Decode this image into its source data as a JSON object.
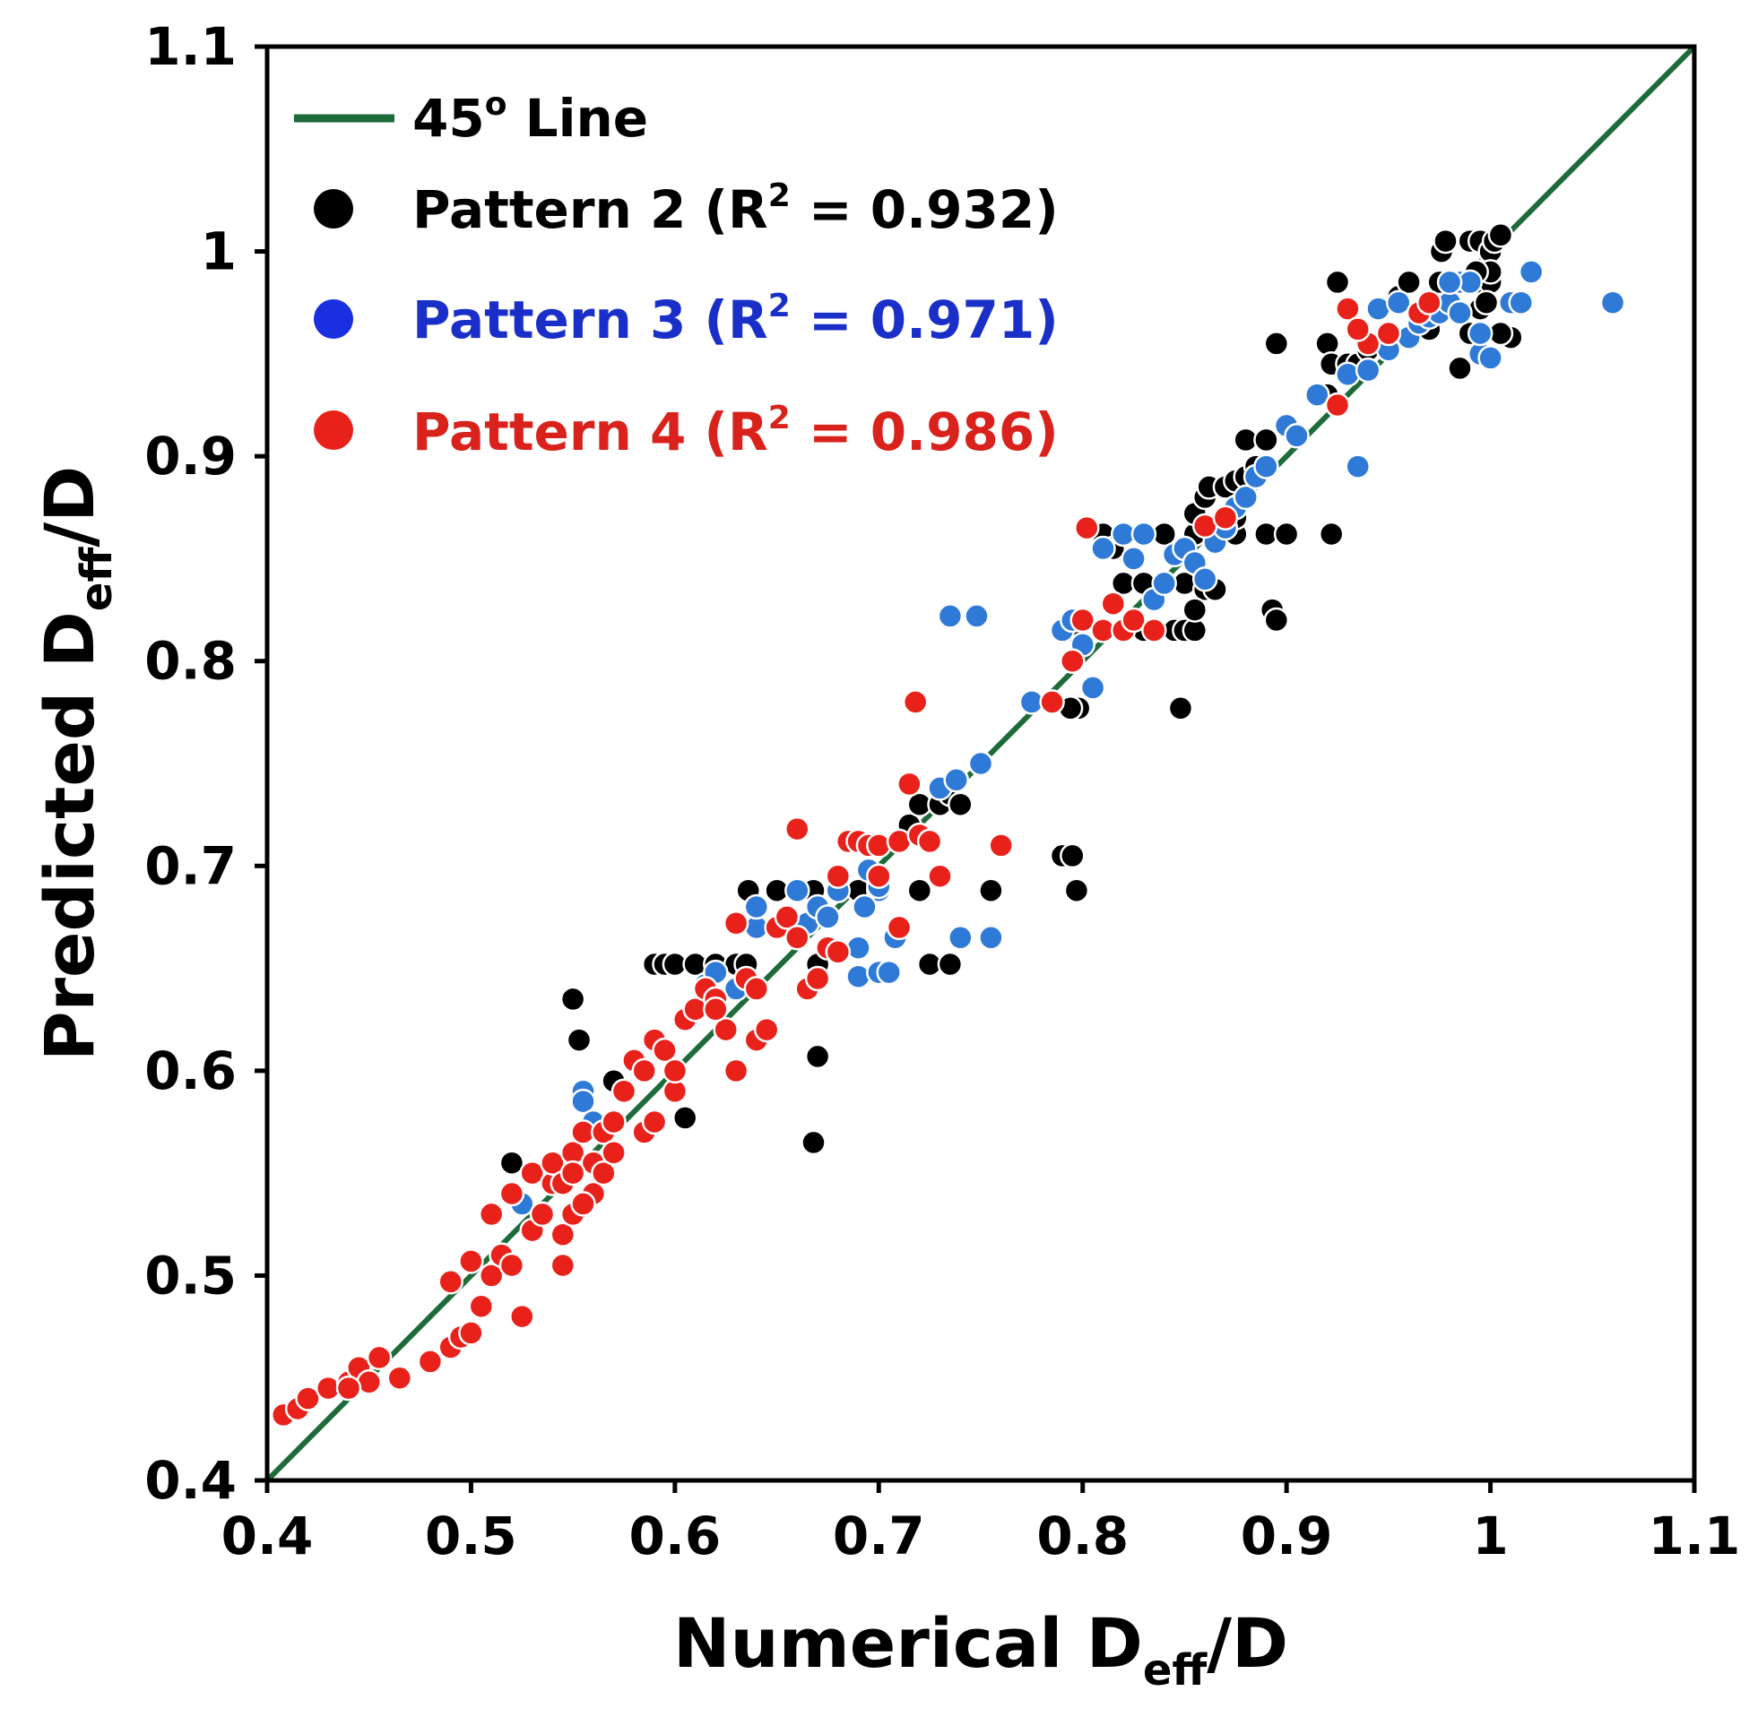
{
  "chart_data": {
    "type": "scatter",
    "xlabel": {
      "main": "Numerical D",
      "sub": "eff",
      "suffix": "/D"
    },
    "ylabel": {
      "main": "Predicted D",
      "sub": "eff",
      "suffix": "/D"
    },
    "xlim": [
      0.4,
      1.1
    ],
    "ylim": [
      0.4,
      1.1
    ],
    "x_ticks": [
      0.4,
      0.5,
      0.6,
      0.7,
      0.8,
      0.9,
      1.0,
      1.1
    ],
    "x_tick_labels": [
      "0.4",
      "0.5",
      "0.6",
      "0.7",
      "0.8",
      "0.9",
      "1",
      "1.1"
    ],
    "y_ticks": [
      0.4,
      0.5,
      0.6,
      0.7,
      0.8,
      0.9,
      1.0,
      1.1
    ],
    "y_tick_labels": [
      "0.4",
      "0.5",
      "0.6",
      "0.7",
      "0.8",
      "0.9",
      "1",
      "1.1"
    ],
    "grid": false,
    "legend_position": "top-left",
    "reference_line": {
      "name": "45° Line",
      "legend_main": "45",
      "legend_sup": "o",
      "legend_suffix": " Line",
      "color": "#1e6b3a",
      "x": [
        0.4,
        1.1
      ],
      "y": [
        0.4,
        1.1
      ]
    },
    "series": [
      {
        "name": "Pattern 2 (R² = 0.932)",
        "legend_prefix": "Pattern 2 (R",
        "legend_sup": "2",
        "legend_suffix": " = 0.932)",
        "color": "#000000",
        "points": [
          [
            0.52,
            0.555
          ],
          [
            0.55,
            0.635
          ],
          [
            0.553,
            0.615
          ],
          [
            0.57,
            0.595
          ],
          [
            0.605,
            0.577
          ],
          [
            0.668,
            0.565
          ],
          [
            0.67,
            0.607
          ],
          [
            0.59,
            0.652
          ],
          [
            0.595,
            0.652
          ],
          [
            0.6,
            0.652
          ],
          [
            0.61,
            0.652
          ],
          [
            0.62,
            0.652
          ],
          [
            0.63,
            0.652
          ],
          [
            0.635,
            0.652
          ],
          [
            0.636,
            0.688
          ],
          [
            0.65,
            0.688
          ],
          [
            0.668,
            0.688
          ],
          [
            0.69,
            0.688
          ],
          [
            0.72,
            0.688
          ],
          [
            0.67,
            0.652
          ],
          [
            0.725,
            0.652
          ],
          [
            0.735,
            0.652
          ],
          [
            0.755,
            0.688
          ],
          [
            0.79,
            0.705
          ],
          [
            0.795,
            0.705
          ],
          [
            0.797,
            0.688
          ],
          [
            0.715,
            0.72
          ],
          [
            0.72,
            0.73
          ],
          [
            0.73,
            0.73
          ],
          [
            0.735,
            0.735
          ],
          [
            0.74,
            0.73
          ],
          [
            0.79,
            0.815
          ],
          [
            0.795,
            0.815
          ],
          [
            0.798,
            0.777
          ],
          [
            0.794,
            0.777
          ],
          [
            0.848,
            0.777
          ],
          [
            0.81,
            0.862
          ],
          [
            0.815,
            0.855
          ],
          [
            0.82,
            0.838
          ],
          [
            0.83,
            0.838
          ],
          [
            0.84,
            0.838
          ],
          [
            0.85,
            0.838
          ],
          [
            0.86,
            0.835
          ],
          [
            0.865,
            0.835
          ],
          [
            0.83,
            0.815
          ],
          [
            0.845,
            0.815
          ],
          [
            0.85,
            0.815
          ],
          [
            0.855,
            0.815
          ],
          [
            0.855,
            0.825
          ],
          [
            0.84,
            0.862
          ],
          [
            0.855,
            0.862
          ],
          [
            0.865,
            0.862
          ],
          [
            0.87,
            0.862
          ],
          [
            0.875,
            0.862
          ],
          [
            0.855,
            0.872
          ],
          [
            0.86,
            0.88
          ],
          [
            0.862,
            0.885
          ],
          [
            0.87,
            0.885
          ],
          [
            0.875,
            0.87
          ],
          [
            0.875,
            0.888
          ],
          [
            0.88,
            0.89
          ],
          [
            0.88,
            0.908
          ],
          [
            0.885,
            0.895
          ],
          [
            0.89,
            0.908
          ],
          [
            0.893,
            0.825
          ],
          [
            0.895,
            0.82
          ],
          [
            0.89,
            0.862
          ],
          [
            0.9,
            0.862
          ],
          [
            0.922,
            0.862
          ],
          [
            0.895,
            0.955
          ],
          [
            0.92,
            0.93
          ],
          [
            0.92,
            0.955
          ],
          [
            0.922,
            0.945
          ],
          [
            0.925,
            0.985
          ],
          [
            0.93,
            0.945
          ],
          [
            0.935,
            0.945
          ],
          [
            0.94,
            0.952
          ],
          [
            0.955,
            0.978
          ],
          [
            0.96,
            0.985
          ],
          [
            0.965,
            0.962
          ],
          [
            0.97,
            0.962
          ],
          [
            0.975,
            0.985
          ],
          [
            0.975,
            0.972
          ],
          [
            0.976,
            1.0
          ],
          [
            0.978,
            1.005
          ],
          [
            0.98,
            0.985
          ],
          [
            0.985,
            0.943
          ],
          [
            0.99,
            0.96
          ],
          [
            0.99,
            1.005
          ],
          [
            0.995,
            1.005
          ],
          [
            0.995,
            0.985
          ],
          [
            0.995,
            0.972
          ],
          [
            1.0,
            1.0
          ],
          [
            1.0,
            0.985
          ],
          [
            1.002,
            1.005
          ],
          [
            1.005,
            1.008
          ],
          [
            1.0,
            0.99
          ],
          [
            0.998,
            0.975
          ],
          [
            1.01,
            0.958
          ],
          [
            1.005,
            0.96
          ],
          [
            0.985,
            0.985
          ],
          [
            0.993,
            0.99
          ]
        ]
      },
      {
        "name": "Pattern 3 (R² = 0.971)",
        "legend_prefix": "Pattern 3 (R",
        "legend_sup": "2",
        "legend_suffix": " = 0.971)",
        "color": "#2f7ad6",
        "points": [
          [
            0.525,
            0.535
          ],
          [
            0.555,
            0.59
          ],
          [
            0.555,
            0.585
          ],
          [
            0.56,
            0.575
          ],
          [
            0.615,
            0.642
          ],
          [
            0.62,
            0.648
          ],
          [
            0.63,
            0.64
          ],
          [
            0.64,
            0.67
          ],
          [
            0.64,
            0.68
          ],
          [
            0.66,
            0.688
          ],
          [
            0.665,
            0.672
          ],
          [
            0.67,
            0.68
          ],
          [
            0.675,
            0.675
          ],
          [
            0.68,
            0.688
          ],
          [
            0.69,
            0.66
          ],
          [
            0.69,
            0.646
          ],
          [
            0.7,
            0.648
          ],
          [
            0.705,
            0.648
          ],
          [
            0.708,
            0.665
          ],
          [
            0.7,
            0.688
          ],
          [
            0.693,
            0.68
          ],
          [
            0.695,
            0.698
          ],
          [
            0.7,
            0.69
          ],
          [
            0.73,
            0.738
          ],
          [
            0.738,
            0.742
          ],
          [
            0.74,
            0.665
          ],
          [
            0.755,
            0.665
          ],
          [
            0.75,
            0.75
          ],
          [
            0.735,
            0.822
          ],
          [
            0.748,
            0.822
          ],
          [
            0.775,
            0.78
          ],
          [
            0.79,
            0.815
          ],
          [
            0.795,
            0.82
          ],
          [
            0.8,
            0.808
          ],
          [
            0.805,
            0.787
          ],
          [
            0.81,
            0.855
          ],
          [
            0.82,
            0.862
          ],
          [
            0.825,
            0.85
          ],
          [
            0.83,
            0.862
          ],
          [
            0.835,
            0.83
          ],
          [
            0.84,
            0.838
          ],
          [
            0.845,
            0.852
          ],
          [
            0.85,
            0.855
          ],
          [
            0.855,
            0.848
          ],
          [
            0.86,
            0.84
          ],
          [
            0.865,
            0.858
          ],
          [
            0.87,
            0.865
          ],
          [
            0.875,
            0.875
          ],
          [
            0.88,
            0.88
          ],
          [
            0.885,
            0.89
          ],
          [
            0.89,
            0.895
          ],
          [
            0.9,
            0.915
          ],
          [
            0.905,
            0.91
          ],
          [
            0.915,
            0.93
          ],
          [
            0.93,
            0.94
          ],
          [
            0.935,
            0.895
          ],
          [
            0.94,
            0.942
          ],
          [
            0.945,
            0.972
          ],
          [
            0.95,
            0.952
          ],
          [
            0.955,
            0.975
          ],
          [
            0.96,
            0.958
          ],
          [
            0.965,
            0.965
          ],
          [
            0.97,
            0.968
          ],
          [
            0.975,
            0.97
          ],
          [
            0.98,
            0.975
          ],
          [
            0.985,
            0.985
          ],
          [
            0.99,
            0.985
          ],
          [
            0.995,
            0.95
          ],
          [
            1.0,
            0.948
          ],
          [
            0.995,
            0.96
          ],
          [
            1.01,
            0.975
          ],
          [
            1.015,
            0.975
          ],
          [
            1.02,
            0.99
          ],
          [
            1.06,
            0.975
          ],
          [
            0.985,
            0.97
          ],
          [
            0.98,
            0.985
          ]
        ]
      },
      {
        "name": "Pattern 4 (R² = 0.986)",
        "legend_prefix": "Pattern 4 (R",
        "legend_sup": "2",
        "legend_suffix": " = 0.986)",
        "color": "#e8221b",
        "points": [
          [
            0.408,
            0.432
          ],
          [
            0.415,
            0.435
          ],
          [
            0.42,
            0.44
          ],
          [
            0.43,
            0.445
          ],
          [
            0.44,
            0.448
          ],
          [
            0.445,
            0.455
          ],
          [
            0.45,
            0.448
          ],
          [
            0.455,
            0.46
          ],
          [
            0.44,
            0.445
          ],
          [
            0.465,
            0.45
          ],
          [
            0.48,
            0.458
          ],
          [
            0.49,
            0.465
          ],
          [
            0.495,
            0.47
          ],
          [
            0.5,
            0.472
          ],
          [
            0.49,
            0.497
          ],
          [
            0.5,
            0.507
          ],
          [
            0.505,
            0.485
          ],
          [
            0.51,
            0.5
          ],
          [
            0.51,
            0.53
          ],
          [
            0.515,
            0.51
          ],
          [
            0.52,
            0.505
          ],
          [
            0.525,
            0.48
          ],
          [
            0.52,
            0.54
          ],
          [
            0.53,
            0.522
          ],
          [
            0.53,
            0.55
          ],
          [
            0.535,
            0.53
          ],
          [
            0.54,
            0.545
          ],
          [
            0.545,
            0.52
          ],
          [
            0.55,
            0.53
          ],
          [
            0.545,
            0.505
          ],
          [
            0.54,
            0.555
          ],
          [
            0.55,
            0.56
          ],
          [
            0.555,
            0.57
          ],
          [
            0.56,
            0.555
          ],
          [
            0.56,
            0.54
          ],
          [
            0.565,
            0.55
          ],
          [
            0.565,
            0.57
          ],
          [
            0.57,
            0.575
          ],
          [
            0.57,
            0.56
          ],
          [
            0.575,
            0.59
          ],
          [
            0.58,
            0.605
          ],
          [
            0.585,
            0.6
          ],
          [
            0.585,
            0.57
          ],
          [
            0.59,
            0.615
          ],
          [
            0.595,
            0.61
          ],
          [
            0.6,
            0.59
          ],
          [
            0.6,
            0.6
          ],
          [
            0.605,
            0.625
          ],
          [
            0.61,
            0.63
          ],
          [
            0.615,
            0.64
          ],
          [
            0.62,
            0.635
          ],
          [
            0.625,
            0.62
          ],
          [
            0.63,
            0.6
          ],
          [
            0.62,
            0.63
          ],
          [
            0.635,
            0.645
          ],
          [
            0.64,
            0.64
          ],
          [
            0.64,
            0.615
          ],
          [
            0.645,
            0.62
          ],
          [
            0.65,
            0.67
          ],
          [
            0.655,
            0.675
          ],
          [
            0.66,
            0.665
          ],
          [
            0.66,
            0.718
          ],
          [
            0.665,
            0.64
          ],
          [
            0.67,
            0.645
          ],
          [
            0.675,
            0.66
          ],
          [
            0.68,
            0.695
          ],
          [
            0.685,
            0.712
          ],
          [
            0.69,
            0.712
          ],
          [
            0.695,
            0.71
          ],
          [
            0.7,
            0.71
          ],
          [
            0.7,
            0.695
          ],
          [
            0.71,
            0.67
          ],
          [
            0.71,
            0.712
          ],
          [
            0.715,
            0.74
          ],
          [
            0.718,
            0.78
          ],
          [
            0.72,
            0.715
          ],
          [
            0.725,
            0.712
          ],
          [
            0.73,
            0.695
          ],
          [
            0.76,
            0.71
          ],
          [
            0.63,
            0.672
          ],
          [
            0.59,
            0.575
          ],
          [
            0.68,
            0.658
          ],
          [
            0.785,
            0.78
          ],
          [
            0.795,
            0.8
          ],
          [
            0.8,
            0.82
          ],
          [
            0.802,
            0.865
          ],
          [
            0.81,
            0.815
          ],
          [
            0.815,
            0.828
          ],
          [
            0.82,
            0.815
          ],
          [
            0.825,
            0.82
          ],
          [
            0.835,
            0.815
          ],
          [
            0.93,
            0.972
          ],
          [
            0.94,
            0.955
          ],
          [
            0.95,
            0.96
          ],
          [
            0.965,
            0.97
          ],
          [
            0.97,
            0.975
          ],
          [
            0.925,
            0.925
          ],
          [
            0.935,
            0.962
          ],
          [
            0.86,
            0.866
          ],
          [
            0.87,
            0.87
          ],
          [
            0.545,
            0.545
          ],
          [
            0.55,
            0.55
          ],
          [
            0.555,
            0.535
          ]
        ]
      }
    ]
  }
}
